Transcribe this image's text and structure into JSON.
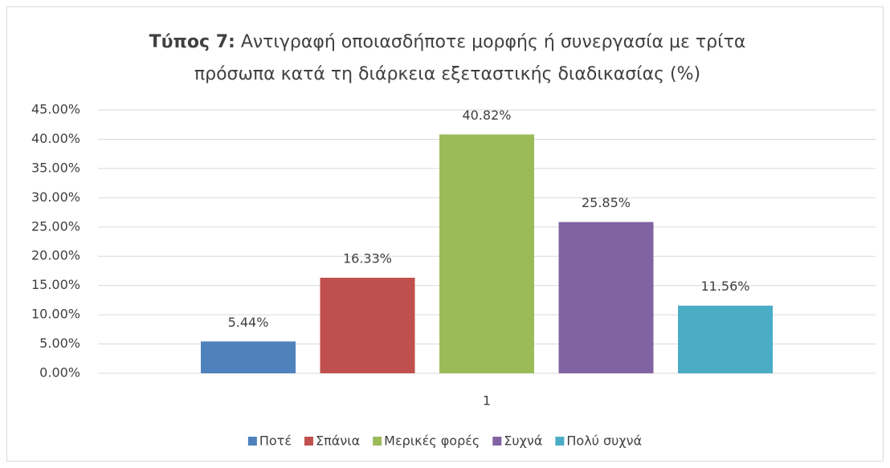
{
  "chart_data": {
    "type": "bar",
    "title_prefix": "Τύπος 7:",
    "title_lines": [
      "Αντιγραφή οποιασδήποτε μορφής ή συνεργασία με τρίτα",
      "πρόσωπα κατά τη διάρκεια εξεταστικής διαδικασίας (%)"
    ],
    "categories": [
      "1"
    ],
    "series": [
      {
        "name": "Ποτέ",
        "color": "#4f81bd",
        "values": [
          5.44
        ],
        "value_labels": [
          "5.44%"
        ]
      },
      {
        "name": "Σπάνια",
        "color": "#c0504d",
        "values": [
          16.33
        ],
        "value_labels": [
          "16.33%"
        ]
      },
      {
        "name": "Μερικές φορές",
        "color": "#9bbb59",
        "values": [
          40.82
        ],
        "value_labels": [
          "40.82%"
        ]
      },
      {
        "name": "Συχνά",
        "color": "#8064a2",
        "values": [
          25.85
        ],
        "value_labels": [
          "25.85%"
        ]
      },
      {
        "name": "Πολύ συχνά",
        "color": "#4bacc6",
        "values": [
          11.56
        ],
        "value_labels": [
          "11.56%"
        ]
      }
    ],
    "ylim": [
      0,
      45
    ],
    "yticks": [
      {
        "value": 0,
        "label": "0.00%"
      },
      {
        "value": 5,
        "label": "5.00%"
      },
      {
        "value": 10,
        "label": "10.00%"
      },
      {
        "value": 15,
        "label": "15.00%"
      },
      {
        "value": 20,
        "label": "20.00%"
      },
      {
        "value": 25,
        "label": "25.00%"
      },
      {
        "value": 30,
        "label": "30.00%"
      },
      {
        "value": 35,
        "label": "35.00%"
      },
      {
        "value": 40,
        "label": "40.00%"
      },
      {
        "value": 45,
        "label": "45.00%"
      }
    ],
    "grid": true,
    "legend": "bottom"
  }
}
